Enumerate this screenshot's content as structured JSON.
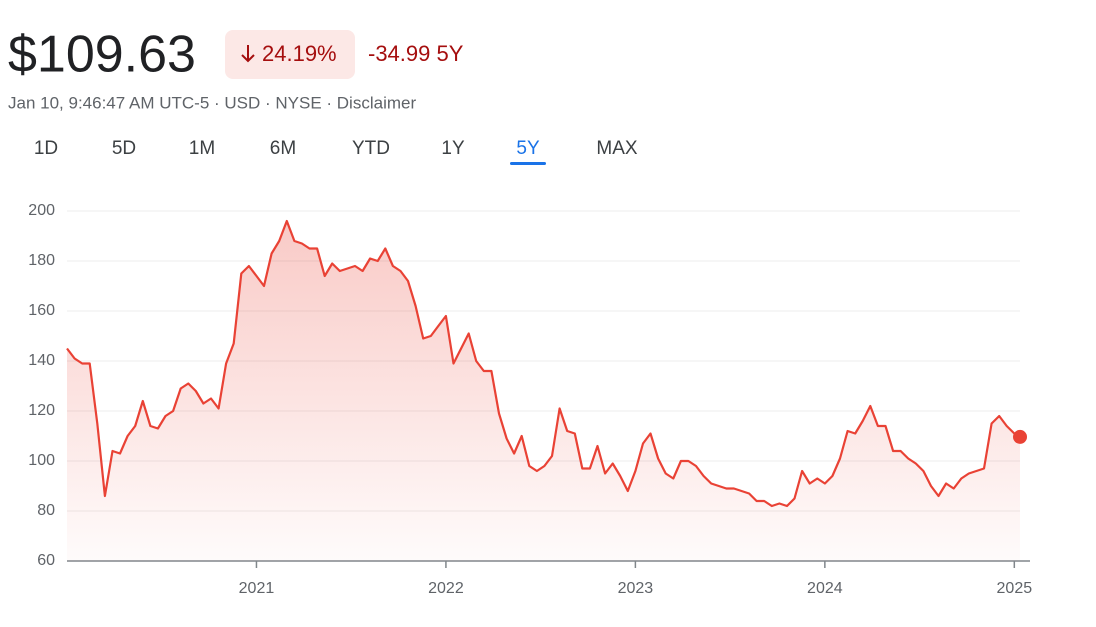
{
  "header": {
    "price": "$109.63",
    "change_percent": "24.19%",
    "change_value": "-34.99 5Y",
    "subtitle": "Jan 10, 9:46:47 AM UTC-5 · USD · NYSE · Disclaimer",
    "tabs": [
      "1D",
      "5D",
      "1M",
      "6M",
      "YTD",
      "1Y",
      "5Y",
      "MAX"
    ],
    "active_tab": 6
  },
  "chart_data": {
    "type": "line",
    "color": "#e94235",
    "x": [
      2020.0,
      2020.04,
      2020.08,
      2020.12,
      2020.16,
      2020.2,
      2020.24,
      2020.28,
      2020.32,
      2020.36,
      2020.4,
      2020.44,
      2020.48,
      2020.52,
      2020.56,
      2020.6,
      2020.64,
      2020.68,
      2020.72,
      2020.76,
      2020.8,
      2020.84,
      2020.88,
      2020.92,
      2020.96,
      2021.0,
      2021.04,
      2021.08,
      2021.12,
      2021.16,
      2021.2,
      2021.24,
      2021.28,
      2021.32,
      2021.36,
      2021.4,
      2021.44,
      2021.48,
      2021.52,
      2021.56,
      2021.6,
      2021.64,
      2021.68,
      2021.72,
      2021.76,
      2021.8,
      2021.84,
      2021.88,
      2021.92,
      2021.96,
      2022.0,
      2022.04,
      2022.08,
      2022.12,
      2022.16,
      2022.2,
      2022.24,
      2022.28,
      2022.32,
      2022.36,
      2022.4,
      2022.44,
      2022.48,
      2022.52,
      2022.56,
      2022.6,
      2022.64,
      2022.68,
      2022.72,
      2022.76,
      2022.8,
      2022.84,
      2022.88,
      2022.92,
      2022.96,
      2023.0,
      2023.04,
      2023.08,
      2023.12,
      2023.16,
      2023.2,
      2023.24,
      2023.28,
      2023.32,
      2023.36,
      2023.4,
      2023.44,
      2023.48,
      2023.52,
      2023.56,
      2023.6,
      2023.64,
      2023.68,
      2023.72,
      2023.76,
      2023.8,
      2023.84,
      2023.88,
      2023.92,
      2023.96,
      2024.0,
      2024.04,
      2024.08,
      2024.12,
      2024.16,
      2024.2,
      2024.24,
      2024.28,
      2024.32,
      2024.36,
      2024.4,
      2024.44,
      2024.48,
      2024.52,
      2024.56,
      2024.6,
      2024.64,
      2024.68,
      2024.72,
      2024.76,
      2024.8,
      2024.84,
      2024.88,
      2024.92,
      2024.96,
      2025.0,
      2025.03
    ],
    "values": [
      145,
      141,
      139,
      139,
      115,
      86,
      104,
      103,
      110,
      114,
      124,
      114,
      113,
      118,
      120,
      129,
      131,
      128,
      123,
      125,
      121,
      139,
      147,
      175,
      178,
      174,
      170,
      183,
      188,
      196,
      188,
      187,
      185,
      185,
      174,
      179,
      176,
      177,
      178,
      176,
      181,
      180,
      185,
      178,
      176,
      172,
      162,
      149,
      150,
      154,
      158,
      139,
      145,
      151,
      140,
      136,
      136,
      119,
      109,
      103,
      110,
      98,
      96,
      98,
      102,
      121,
      112,
      111,
      97,
      97,
      106,
      95,
      99,
      94,
      88,
      96,
      107,
      111,
      101,
      95,
      93,
      100,
      100,
      98,
      94,
      91,
      90,
      89,
      89,
      88,
      87,
      84,
      84,
      82,
      83,
      82,
      85,
      96,
      91,
      93,
      91,
      94,
      101,
      112,
      111,
      116,
      122,
      114,
      114,
      104,
      104,
      101,
      99,
      96,
      90,
      86,
      91,
      89,
      93,
      95,
      96,
      97,
      115,
      118,
      114,
      111,
      109.63
    ],
    "xlim": [
      2020,
      2025.03
    ],
    "xticks": [
      2021,
      2022,
      2023,
      2024,
      2025
    ],
    "ylim": [
      60,
      200
    ],
    "yticks": [
      60,
      80,
      100,
      120,
      140,
      160,
      180,
      200
    ],
    "grid": true
  }
}
